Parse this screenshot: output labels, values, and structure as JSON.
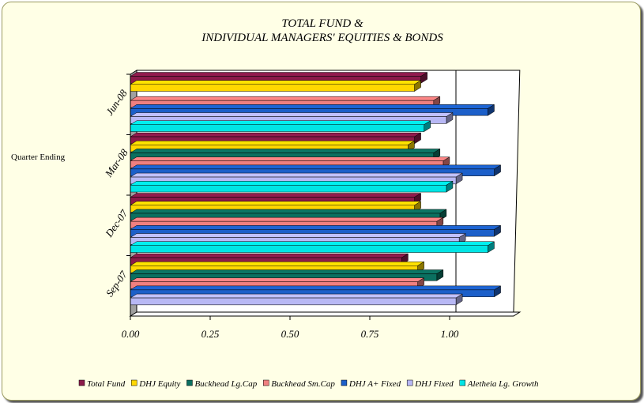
{
  "chart_data": {
    "type": "bar",
    "orientation": "horizontal",
    "title_lines": [
      "TOTAL FUND &",
      "INDIVIDUAL MANAGERS' EQUITIES & BONDS"
    ],
    "ylabel": "Quarter Ending",
    "xlabel": "",
    "categories": [
      "Sep-07",
      "Dec-07",
      "Mar-08",
      "Jun-08"
    ],
    "xlim": [
      0,
      1.2
    ],
    "xticks": [
      "0.00",
      "0.25",
      "0.50",
      "0.75",
      "1.00"
    ],
    "xtick_values": [
      0,
      0.25,
      0.5,
      0.75,
      1.0
    ],
    "grid": "vertical gridline at 1.00",
    "legend_position": "bottom",
    "series": [
      {
        "name": "Total Fund",
        "color": "#8b1a4a",
        "values": [
          0.85,
          0.89,
          0.89,
          0.91
        ]
      },
      {
        "name": "DHJ Equity",
        "color": "#ffd700",
        "values": [
          0.9,
          0.89,
          0.87,
          0.89
        ]
      },
      {
        "name": "Buckhead Lg.Cap",
        "color": "#0b7060",
        "values": [
          0.96,
          0.97,
          0.95,
          null
        ]
      },
      {
        "name": "Buckhead Sm.Cap",
        "color": "#f08080",
        "values": [
          0.9,
          0.96,
          0.98,
          0.95
        ]
      },
      {
        "name": "DHJ A+ Fixed",
        "color": "#1c5fc9",
        "values": [
          1.14,
          1.14,
          1.14,
          1.12
        ]
      },
      {
        "name": "DHJ Fixed",
        "color": "#b8b8f5",
        "values": [
          1.02,
          1.03,
          1.02,
          0.99
        ]
      },
      {
        "name": "Aletheia Lg. Growth",
        "color": "#00e5e5",
        "values": [
          null,
          1.12,
          0.99,
          0.92
        ]
      }
    ]
  }
}
